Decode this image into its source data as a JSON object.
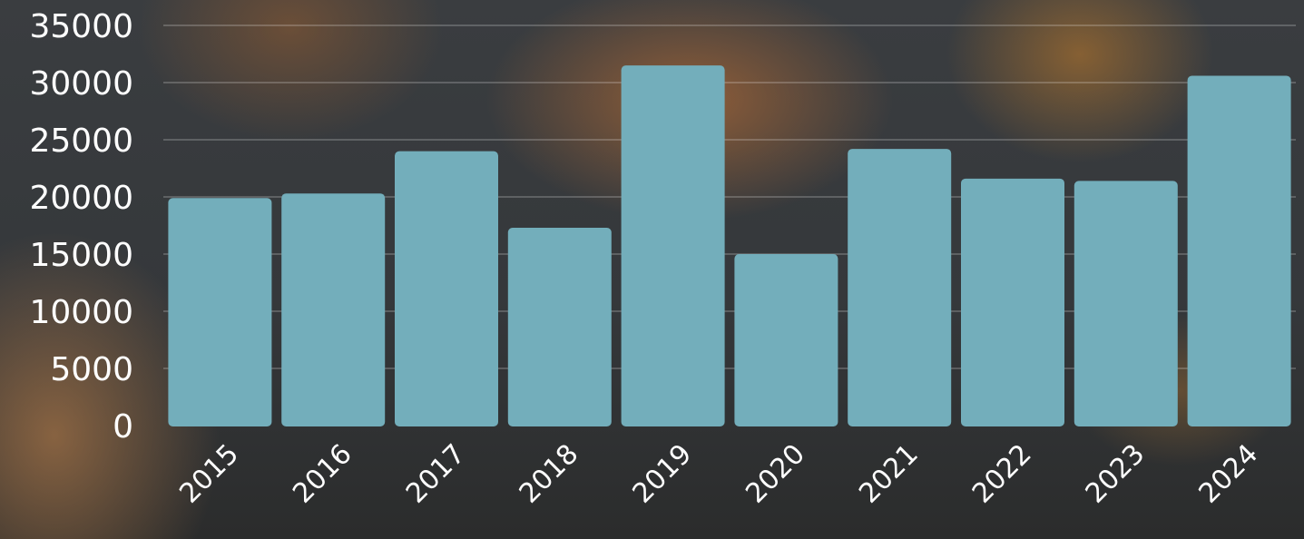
{
  "chart_data": {
    "type": "bar",
    "categories": [
      "2015",
      "2016",
      "2017",
      "2018",
      "2019",
      "2020",
      "2021",
      "2022",
      "2023",
      "2024"
    ],
    "values": [
      19900,
      20300,
      24000,
      17300,
      31500,
      15000,
      24200,
      21600,
      21400,
      30600
    ],
    "title": "",
    "xlabel": "",
    "ylabel": "",
    "ylim": [
      0,
      35000
    ],
    "yticks": [
      "0",
      "5000",
      "10000",
      "15000",
      "20000",
      "25000",
      "30000",
      "35000"
    ],
    "grid": true,
    "legend": "none",
    "colors": {
      "bar": "#73aebb",
      "text": "#ffffff",
      "grid": "#8a8c8e"
    }
  }
}
